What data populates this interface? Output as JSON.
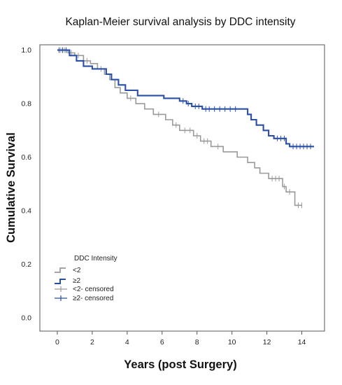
{
  "chart_data": {
    "type": "line",
    "title": "Kaplan-Meier survival analysis by DDC intensity",
    "xlabel": "Years (post Surgery)",
    "ylabel": "Cumulative Survival",
    "xlim": [
      -1,
      15.3
    ],
    "ylim": [
      -0.05,
      1.02
    ],
    "x_ticks": [
      "0",
      "2",
      "4",
      "6",
      "8",
      "10",
      "12",
      "14"
    ],
    "x_tick_values": [
      0,
      2,
      4,
      6,
      8,
      10,
      12,
      14
    ],
    "y_ticks": [
      "0.0",
      "0.2",
      "0.4",
      "0.6",
      "0.8",
      "1.0"
    ],
    "y_tick_values": [
      0,
      0.2,
      0.4,
      0.6,
      0.8,
      1.0
    ],
    "grid": false,
    "legend": {
      "title": "DDC Intensity",
      "placement": "bottom-left",
      "entries": [
        "<2",
        "≥2",
        "<2- censored",
        "≥2- censored"
      ]
    },
    "series": [
      {
        "name": "<2",
        "color": "#9a9a9a",
        "steps": [
          [
            0,
            1.0
          ],
          [
            0.6,
            0.99
          ],
          [
            1.0,
            0.98
          ],
          [
            1.5,
            0.96
          ],
          [
            1.9,
            0.95
          ],
          [
            2.3,
            0.93
          ],
          [
            2.7,
            0.91
          ],
          [
            3.0,
            0.89
          ],
          [
            3.3,
            0.86
          ],
          [
            3.6,
            0.84
          ],
          [
            4.0,
            0.82
          ],
          [
            4.5,
            0.8
          ],
          [
            5.0,
            0.78
          ],
          [
            5.5,
            0.76
          ],
          [
            6.2,
            0.74
          ],
          [
            6.6,
            0.72
          ],
          [
            7.0,
            0.7
          ],
          [
            7.8,
            0.68
          ],
          [
            8.2,
            0.66
          ],
          [
            8.8,
            0.64
          ],
          [
            9.5,
            0.62
          ],
          [
            10.3,
            0.6
          ],
          [
            10.9,
            0.58
          ],
          [
            11.3,
            0.56
          ],
          [
            11.6,
            0.54
          ],
          [
            12.1,
            0.52
          ],
          [
            12.9,
            0.49
          ],
          [
            13.1,
            0.47
          ],
          [
            13.6,
            0.42
          ],
          [
            14.0,
            0.42
          ]
        ],
        "censored": [
          [
            0.2,
            1.0
          ],
          [
            0.4,
            1.0
          ],
          [
            0.8,
            0.99
          ],
          [
            1.2,
            0.98
          ],
          [
            1.7,
            0.96
          ],
          [
            2.5,
            0.93
          ],
          [
            4.2,
            0.82
          ],
          [
            5.8,
            0.76
          ],
          [
            6.8,
            0.72
          ],
          [
            7.3,
            0.7
          ],
          [
            7.6,
            0.7
          ],
          [
            8.0,
            0.68
          ],
          [
            8.4,
            0.66
          ],
          [
            8.6,
            0.66
          ],
          [
            9.2,
            0.64
          ],
          [
            12.3,
            0.52
          ],
          [
            12.5,
            0.52
          ],
          [
            12.7,
            0.52
          ],
          [
            13.0,
            0.49
          ],
          [
            13.3,
            0.47
          ],
          [
            13.8,
            0.42
          ],
          [
            14.0,
            0.42
          ]
        ]
      },
      {
        "name": "≥2",
        "color": "#2a4fa8",
        "steps": [
          [
            0,
            1.0
          ],
          [
            0.7,
            0.98
          ],
          [
            1.1,
            0.96
          ],
          [
            1.5,
            0.94
          ],
          [
            2.0,
            0.93
          ],
          [
            2.8,
            0.91
          ],
          [
            3.1,
            0.89
          ],
          [
            3.5,
            0.87
          ],
          [
            3.9,
            0.85
          ],
          [
            4.6,
            0.83
          ],
          [
            6.1,
            0.82
          ],
          [
            7.0,
            0.81
          ],
          [
            7.4,
            0.8
          ],
          [
            7.7,
            0.79
          ],
          [
            8.3,
            0.78
          ],
          [
            10.9,
            0.76
          ],
          [
            11.1,
            0.74
          ],
          [
            11.4,
            0.72
          ],
          [
            11.8,
            0.7
          ],
          [
            12.1,
            0.68
          ],
          [
            12.4,
            0.67
          ],
          [
            13.1,
            0.65
          ],
          [
            13.3,
            0.64
          ],
          [
            14.7,
            0.64
          ]
        ],
        "censored": [
          [
            0.1,
            1.0
          ],
          [
            0.3,
            1.0
          ],
          [
            0.5,
            1.0
          ],
          [
            7.2,
            0.81
          ],
          [
            7.5,
            0.8
          ],
          [
            7.9,
            0.79
          ],
          [
            8.1,
            0.79
          ],
          [
            8.5,
            0.78
          ],
          [
            8.7,
            0.78
          ],
          [
            9.0,
            0.78
          ],
          [
            9.3,
            0.78
          ],
          [
            9.6,
            0.78
          ],
          [
            9.9,
            0.78
          ],
          [
            10.2,
            0.78
          ],
          [
            12.6,
            0.67
          ],
          [
            12.8,
            0.67
          ],
          [
            13.0,
            0.67
          ],
          [
            13.5,
            0.64
          ],
          [
            13.7,
            0.64
          ],
          [
            13.9,
            0.64
          ],
          [
            14.1,
            0.64
          ],
          [
            14.3,
            0.64
          ],
          [
            14.5,
            0.64
          ]
        ]
      }
    ]
  }
}
